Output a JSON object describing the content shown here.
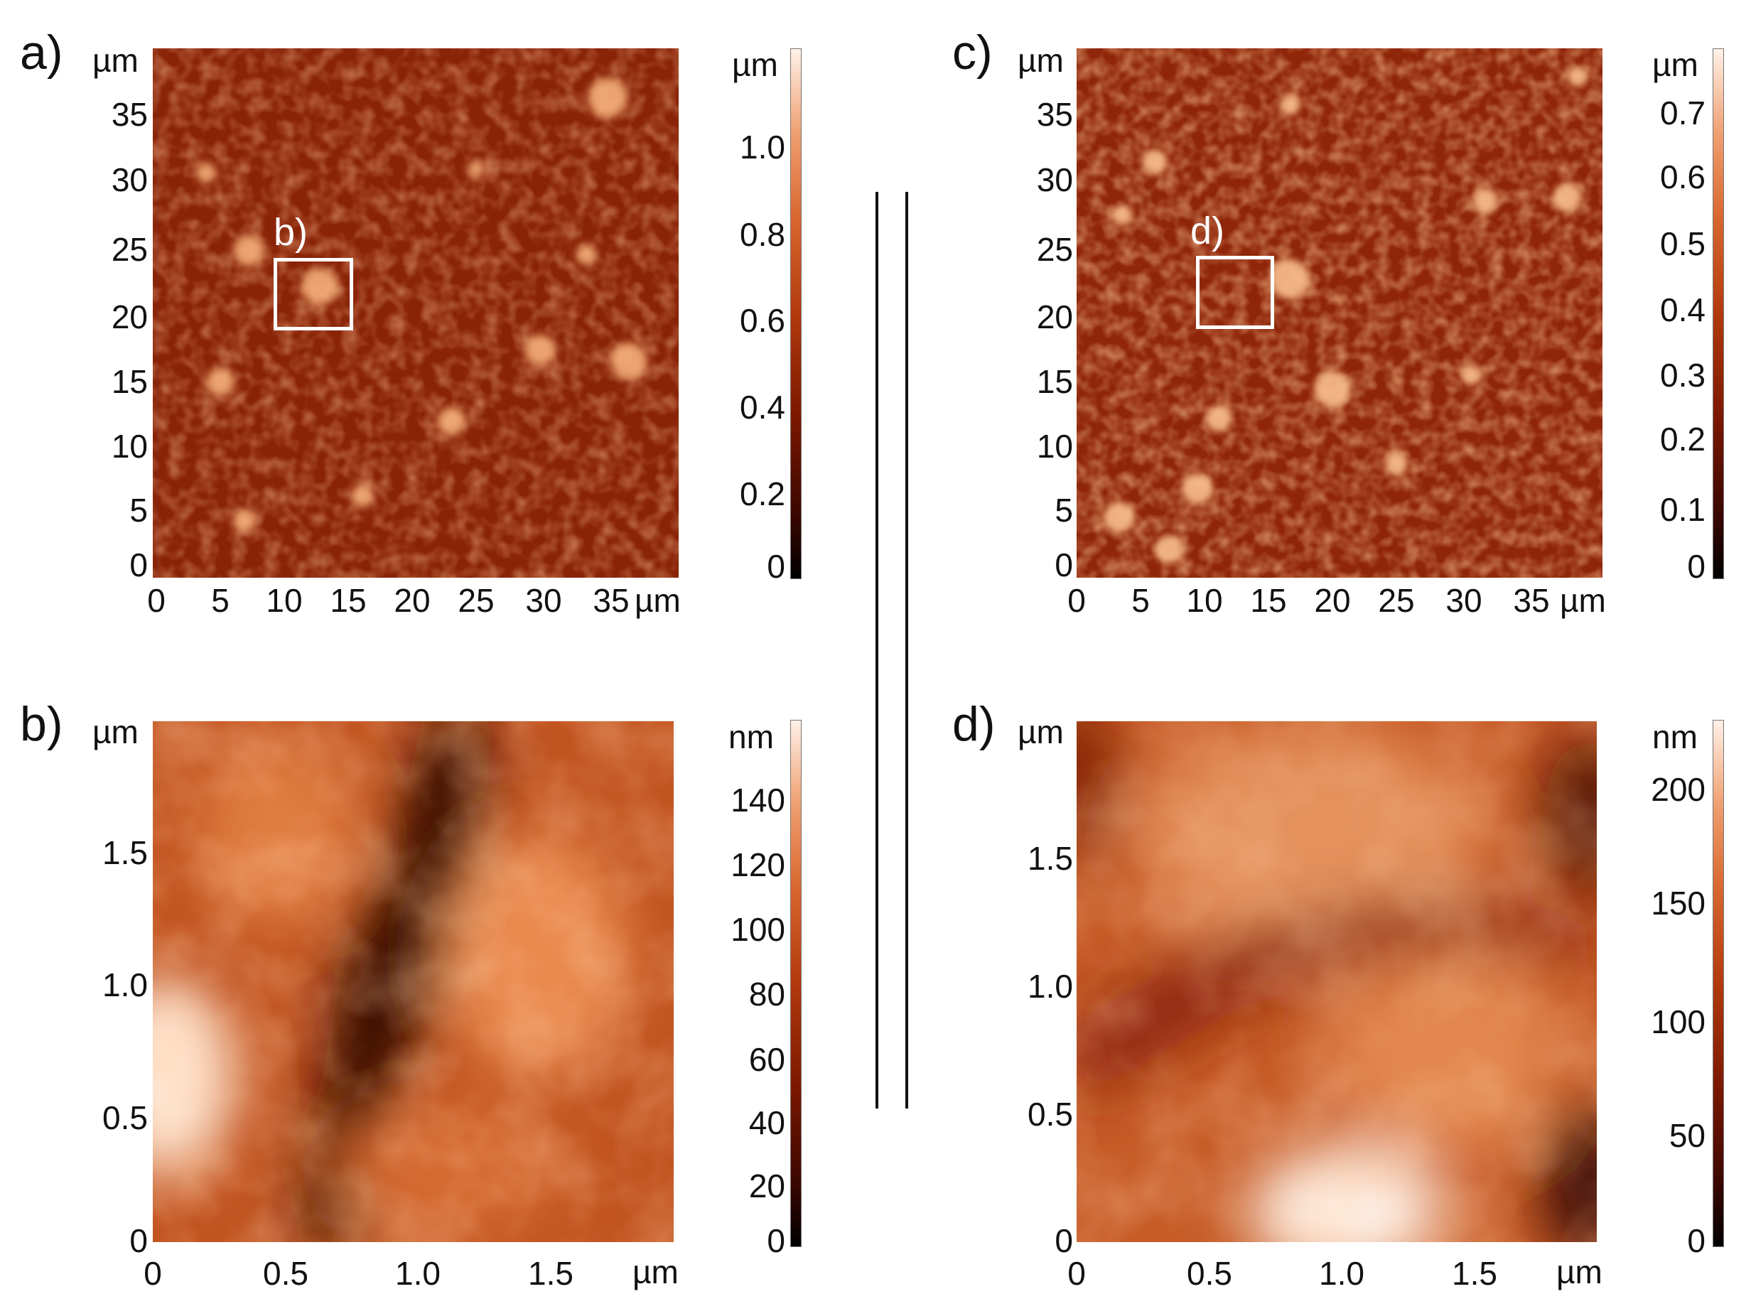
{
  "panels": {
    "a": {
      "letter": "a)",
      "y_unit": "µm",
      "x_unit": "µm",
      "y_ticks": [
        "35",
        "30",
        "25",
        "20",
        "15",
        "10",
        "5",
        "0"
      ],
      "x_ticks": [
        "0",
        "5",
        "10",
        "15",
        "20",
        "25",
        "30",
        "35"
      ],
      "colorbar_unit": "µm",
      "colorbar_ticks": [
        "1.0",
        "0.8",
        "0.6",
        "0.4",
        "0.2",
        "0"
      ],
      "roi_label": "b)"
    },
    "b": {
      "letter": "b)",
      "y_unit": "µm",
      "x_unit": "µm",
      "y_ticks": [
        "1.5",
        "1.0",
        "0.5",
        "0"
      ],
      "x_ticks": [
        "0",
        "0.5",
        "1.0",
        "1.5"
      ],
      "colorbar_unit": "nm",
      "colorbar_ticks": [
        "140",
        "120",
        "100",
        "80",
        "60",
        "40",
        "20",
        "0"
      ]
    },
    "c": {
      "letter": "c)",
      "y_unit": "µm",
      "x_unit": "µm",
      "y_ticks": [
        "35",
        "30",
        "25",
        "20",
        "15",
        "10",
        "5",
        "0"
      ],
      "x_ticks": [
        "0",
        "5",
        "10",
        "15",
        "20",
        "25",
        "30",
        "35"
      ],
      "colorbar_unit": "µm",
      "colorbar_ticks": [
        "0.7",
        "0.6",
        "0.5",
        "0.4",
        "0.3",
        "0.2",
        "0.1",
        "0"
      ],
      "roi_label": "d)"
    },
    "d": {
      "letter": "d)",
      "y_unit": "µm",
      "x_unit": "µm",
      "y_ticks": [
        "1.5",
        "1.0",
        "0.5",
        "0"
      ],
      "x_ticks": [
        "0",
        "0.5",
        "1.0",
        "1.5"
      ],
      "colorbar_unit": "nm",
      "colorbar_ticks": [
        "200",
        "150",
        "100",
        "50",
        "0"
      ]
    }
  },
  "colors": {
    "colormap": [
      "#000000",
      "#3a0700",
      "#7a1700",
      "#b13a0d",
      "#d8672e",
      "#ef9f70",
      "#fff1e8"
    ],
    "roi_box": "#ffffff",
    "divider": "#111111"
  }
}
